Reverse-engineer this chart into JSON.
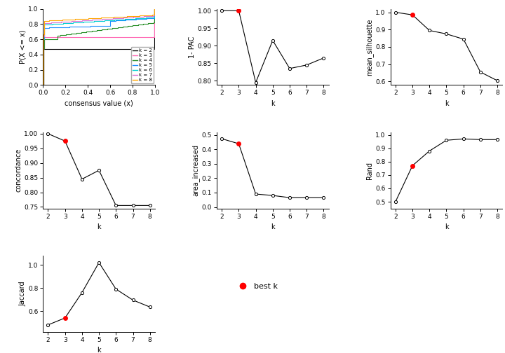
{
  "k_values": [
    2,
    3,
    4,
    5,
    6,
    7,
    8
  ],
  "one_minus_pac": [
    1.0,
    1.0,
    0.795,
    0.915,
    0.835,
    0.845,
    0.865
  ],
  "best_k_1pac": 3,
  "mean_silhouette": [
    1.0,
    0.985,
    0.895,
    0.875,
    0.845,
    0.655,
    0.605
  ],
  "best_k_silhouette": 3,
  "concordance": [
    1.0,
    0.975,
    0.845,
    0.875,
    0.755,
    0.755,
    0.755
  ],
  "best_k_concordance": 3,
  "area_increased": [
    0.475,
    0.44,
    0.09,
    0.08,
    0.065,
    0.065,
    0.065
  ],
  "best_k_area": 3,
  "rand": [
    0.5,
    0.77,
    0.88,
    0.96,
    0.97,
    0.965,
    0.965
  ],
  "best_k_rand": 3,
  "jaccard": [
    0.48,
    0.54,
    0.76,
    1.02,
    0.79,
    0.695,
    0.635
  ],
  "best_k_jaccard": 3,
  "ecdf_colors": [
    "#000000",
    "#ff69b4",
    "#228b22",
    "#1e90ff",
    "#00ced1",
    "#da70d6",
    "#ffa500"
  ],
  "ecdf_k_labels": [
    "k = 2",
    "k = 3",
    "k = 4",
    "k = 5",
    "k = 6",
    "k = 7",
    "k = 8"
  ],
  "bg_color": "#ffffff",
  "line_color": "#000000",
  "best_k_color": "#ff0000",
  "open_marker_facecolor": "white",
  "open_marker_edgecolor": "#000000"
}
